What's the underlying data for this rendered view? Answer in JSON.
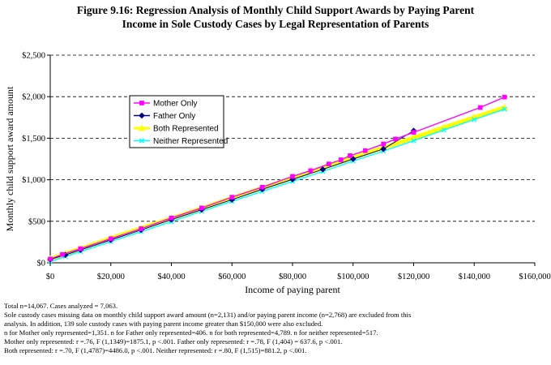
{
  "title_line1": "Figure 9.16:  Regression Analysis of Monthly Child Support Awards by Paying Parent",
  "title_line2": "Income in Sole Custody Cases by Legal Representation of Parents",
  "chart_data": {
    "type": "scatter",
    "title": "Figure 9.16:  Regression Analysis of Monthly Child Support Awards by Paying Parent Income in Sole Custody Cases by Legal Representation of Parents",
    "xlabel": "Income of paying parent",
    "ylabel": "Monthly child support award amount",
    "xlim": [
      0,
      160000
    ],
    "ylim": [
      0,
      2500
    ],
    "x_ticks": [
      0,
      20000,
      40000,
      60000,
      80000,
      100000,
      120000,
      140000,
      160000
    ],
    "x_tick_labels": [
      "$0",
      "$20,000",
      "$40,000",
      "$60,000",
      "$80,000",
      "$100,000",
      "$120,000",
      "$140,000",
      "$160,000"
    ],
    "y_ticks": [
      0,
      500,
      1000,
      1500,
      2000,
      2500
    ],
    "y_tick_labels": [
      "$0",
      "$500",
      "$1,000",
      "$1,500",
      "$2,000",
      "$2,500"
    ],
    "grid": "horizontal",
    "legend_position": "upper-left",
    "series": [
      {
        "name": "Mother Only",
        "color": "#ff00ff",
        "marker": "square",
        "x": [
          0,
          4000,
          10000,
          20000,
          30000,
          40000,
          50000,
          60000,
          70000,
          80000,
          86000,
          92000,
          96000,
          99000,
          104000,
          110000,
          114000,
          120000,
          142000,
          150000
        ],
        "y": [
          45,
          100,
          170,
          290,
          410,
          540,
          660,
          790,
          910,
          1040,
          1110,
          1190,
          1240,
          1290,
          1350,
          1430,
          1490,
          1570,
          1870,
          1995
        ]
      },
      {
        "name": "Father Only",
        "color": "#000080",
        "marker": "diamond",
        "x": [
          0,
          5000,
          10000,
          20000,
          30000,
          40000,
          50000,
          60000,
          70000,
          80000,
          90000,
          100000,
          110000,
          120000
        ],
        "y": [
          40,
          95,
          155,
          275,
          395,
          520,
          640,
          760,
          885,
          1005,
          1125,
          1250,
          1370,
          1590
        ]
      },
      {
        "name": "Both Represented",
        "color": "#ffff00",
        "marker": "triangle",
        "x": [
          0,
          5000,
          10000,
          20000,
          30000,
          40000,
          50000,
          60000,
          70000,
          80000,
          90000,
          100000,
          110000,
          120000,
          130000,
          140000,
          150000
        ],
        "y": [
          45,
          110,
          170,
          295,
          415,
          535,
          655,
          780,
          900,
          1020,
          1140,
          1265,
          1385,
          1505,
          1630,
          1750,
          1870
        ]
      },
      {
        "name": "Neither Represented",
        "color": "#00ffff",
        "marker": "x",
        "x": [
          0,
          5000,
          10000,
          20000,
          30000,
          40000,
          50000,
          60000,
          70000,
          80000,
          90000,
          100000,
          110000,
          120000,
          130000,
          140000,
          150000
        ],
        "y": [
          15,
          75,
          135,
          255,
          375,
          495,
          620,
          740,
          860,
          980,
          1100,
          1225,
          1345,
          1470,
          1600,
          1725,
          1850
        ]
      }
    ]
  },
  "notes": [
    "Total n=14,067.  Cases analyzed = 7,063.",
    "Sole custody cases missing data on monthly child support award amount (n=2,131) and/or paying parent income (n=2,768) are excluded from this",
    "analysis.  In addition, 139 sole custody cases with paying parent income greater than $150,000 were also excluded.",
    "n for Mother only represented=1,351.  n for Father only represented=406.  n for both represented=4,789.  n for neither represented=517.",
    "Mother only represented: r =.76, F (1,1349)=1875.1, p <.001.  Father only represented: r =.78, F (1,404) = 637.6, p <.001.",
    "Both represented: r =.70, F (1,4787)=4486.0, p <.001.  Neither represented: r =.80, F (1,515)=881.2, p <.001."
  ]
}
